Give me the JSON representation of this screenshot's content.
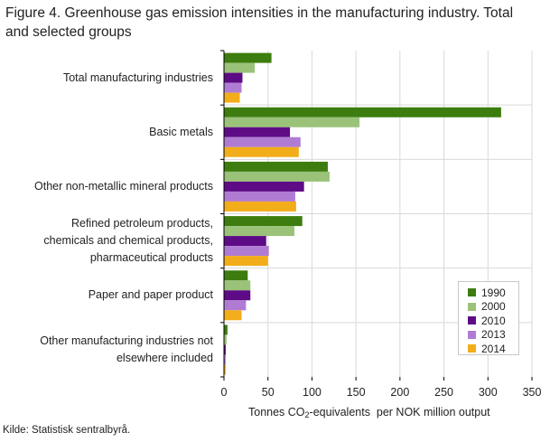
{
  "title_lines": [
    "Figure 4. Greenhouse gas emission intensities in the manufacturing industry. Total",
    "and selected groups"
  ],
  "source": "Kilde: Statistisk sentralbyrå.",
  "chart_data": {
    "type": "bar",
    "orientation": "horizontal",
    "title": "Figure 4. Greenhouse gas emission intensities in the manufacturing industry. Total and selected groups",
    "xlabel": "Tonnes CO2-equivalents per NOK million output",
    "xlabel_parts": {
      "before": "Tonnes CO",
      "sub": "2",
      "after": "-equivalents  per NOK million output"
    },
    "xlim": [
      0,
      350
    ],
    "xticks": [
      0,
      50,
      100,
      150,
      200,
      250,
      300,
      350
    ],
    "grid": true,
    "legend_position": "bottom-right",
    "categories": [
      [
        "Total manufacturing industries"
      ],
      [
        "Basic metals"
      ],
      [
        "Other non-metallic mineral products"
      ],
      [
        "Refined petroleum products,",
        "chemicals and chemical products,",
        "pharmaceutical products"
      ],
      [
        "Paper and paper product"
      ],
      [
        "Other manufacturing industries not",
        "elsewhere included"
      ]
    ],
    "series": [
      {
        "name": "1990",
        "color": "#3d7d0f",
        "values": [
          54,
          315,
          118,
          89,
          27,
          4
        ]
      },
      {
        "name": "2000",
        "color": "#9ac279",
        "values": [
          35,
          154,
          120,
          80,
          30,
          3
        ]
      },
      {
        "name": "2010",
        "color": "#5e0b86",
        "values": [
          21,
          75,
          91,
          48,
          30,
          2
        ]
      },
      {
        "name": "2013",
        "color": "#b07cd3",
        "values": [
          20,
          87,
          81,
          51,
          25,
          2
        ]
      },
      {
        "name": "2014",
        "color": "#f2ad1a",
        "values": [
          18,
          85,
          82,
          50,
          20,
          2
        ]
      }
    ]
  }
}
